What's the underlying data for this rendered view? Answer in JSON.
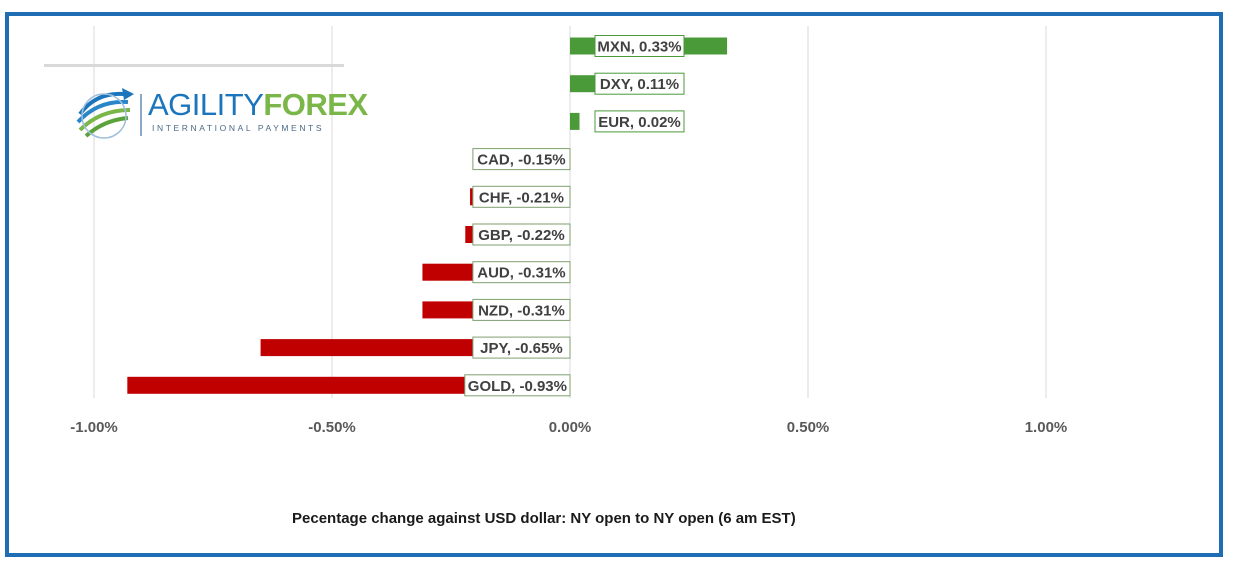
{
  "logo": {
    "name_part1": "AGILITY",
    "name_part2": "FOREX",
    "tagline": "INTERNATIONAL PAYMENTS"
  },
  "caption": "Pecentage change against USD dollar: NY open to NY open (6 am EST)",
  "colors": {
    "frame": "#1f6db5",
    "positive": "#4a9a3a",
    "negative": "#c00000",
    "grid": "#d9d9d9"
  },
  "chart_data": {
    "type": "bar",
    "orientation": "horizontal",
    "xlim": [
      -1.0,
      1.0
    ],
    "x_ticks": [
      "-1.00%",
      "-0.50%",
      "0.00%",
      "0.50%",
      "1.00%"
    ],
    "x_tick_values": [
      -1.0,
      -0.5,
      0.0,
      0.5,
      1.0
    ],
    "grid": true,
    "categories": [
      "MXN",
      "DXY",
      "EUR",
      "CAD",
      "CHF",
      "GBP",
      "AUD",
      "NZD",
      "JPY",
      "GOLD"
    ],
    "values": [
      0.33,
      0.11,
      0.02,
      -0.15,
      -0.21,
      -0.22,
      -0.31,
      -0.31,
      -0.65,
      -0.93
    ],
    "data_labels": [
      "MXN, 0.33%",
      "DXY, 0.11%",
      "EUR, 0.02%",
      "CAD, -0.15%",
      "CHF, -0.21%",
      "GBP, -0.22%",
      "AUD, -0.31%",
      "NZD, -0.31%",
      "JPY, -0.65%",
      "GOLD, -0.93%"
    ]
  }
}
